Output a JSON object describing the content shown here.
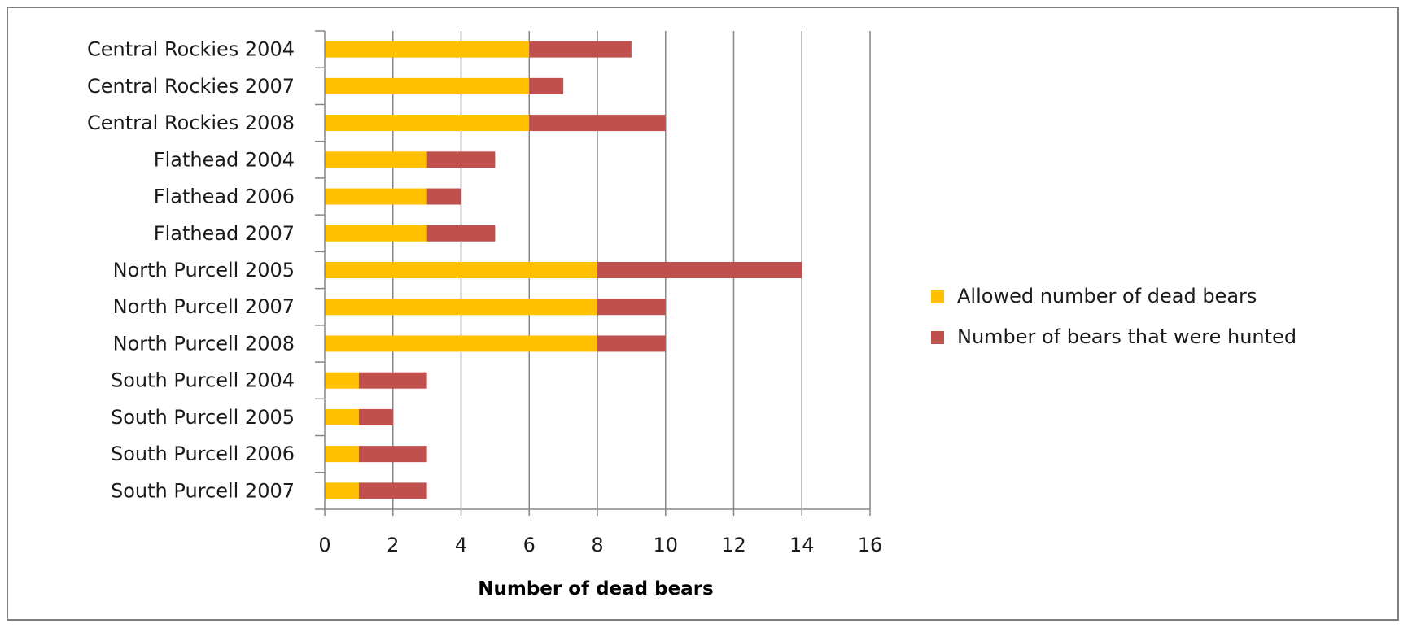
{
  "chart_data": {
    "type": "bar",
    "orientation": "horizontal",
    "stacked": true,
    "title": "",
    "xlabel": "Number of dead bears",
    "ylabel": "",
    "xlim": [
      0,
      16
    ],
    "xticks": [
      0,
      2,
      4,
      6,
      8,
      10,
      12,
      14,
      16
    ],
    "grid": "vertical",
    "legend_position": "right",
    "categories": [
      "Central Rockies 2004",
      "Central Rockies 2007",
      "Central Rockies 2008",
      "Flathead 2004",
      "Flathead 2006",
      "Flathead 2007",
      "North Purcell 2005",
      "North Purcell 2007",
      "North Purcell 2008",
      "South Purcell 2004",
      "South Purcell 2005",
      "South Purcell 2006",
      "South Purcell 2007"
    ],
    "series": [
      {
        "name": "Allowed number of dead bears",
        "color": "#FFC000",
        "values": [
          6,
          6,
          6,
          3,
          3,
          3,
          8,
          8,
          8,
          1,
          1,
          1,
          1
        ]
      },
      {
        "name": "Number of bears that were hunted",
        "color": "#C0504D",
        "values": [
          3,
          1,
          4,
          2,
          1,
          2,
          6,
          2,
          2,
          2,
          1,
          2,
          2
        ]
      }
    ],
    "colors": {
      "gridline": "#868686",
      "axis": "#868686",
      "frame": "#7f7f7f"
    }
  }
}
